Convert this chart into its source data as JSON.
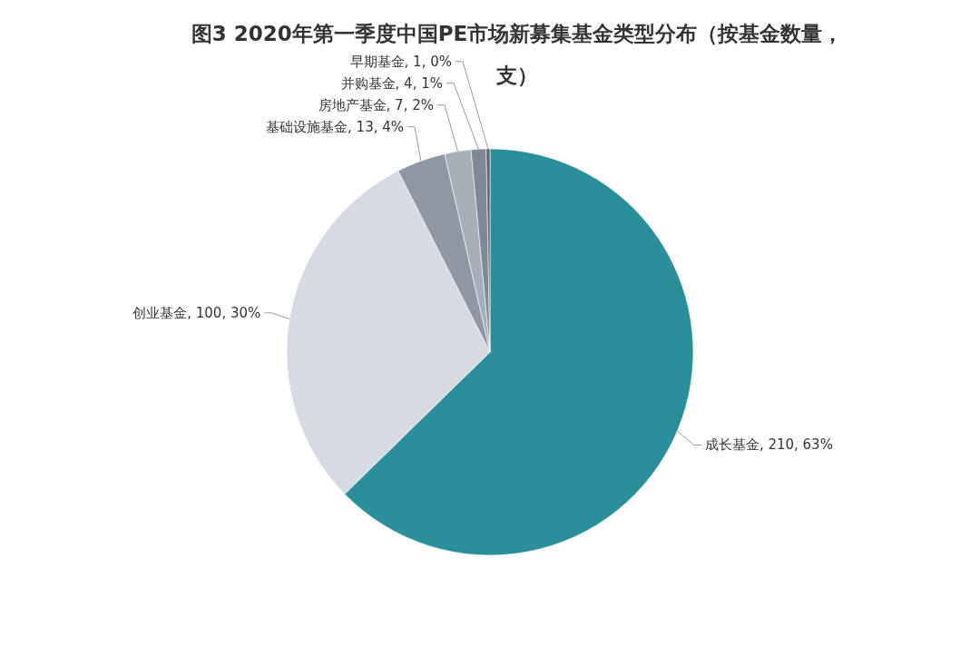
{
  "chart_data": {
    "type": "pie",
    "title": "图3  2020年第一季度中国PE市场新募集基金类型分布（按基金数量，支）",
    "categories": [
      "成长基金",
      "创业基金",
      "基础设施基金",
      "房地产基金",
      "并购基金",
      "早期基金"
    ],
    "values": [
      210,
      100,
      13,
      7,
      4,
      1
    ],
    "colors": [
      "#2a8f9b",
      "#d5dae3",
      "#8e97a3",
      "#a7aeb8",
      "#7f8894",
      "#5c6570"
    ],
    "value_labels": [
      "210, 63%",
      "100, 30%",
      "13, 4%",
      "7, 2%",
      "4, 1%",
      "1, 0%"
    ]
  }
}
